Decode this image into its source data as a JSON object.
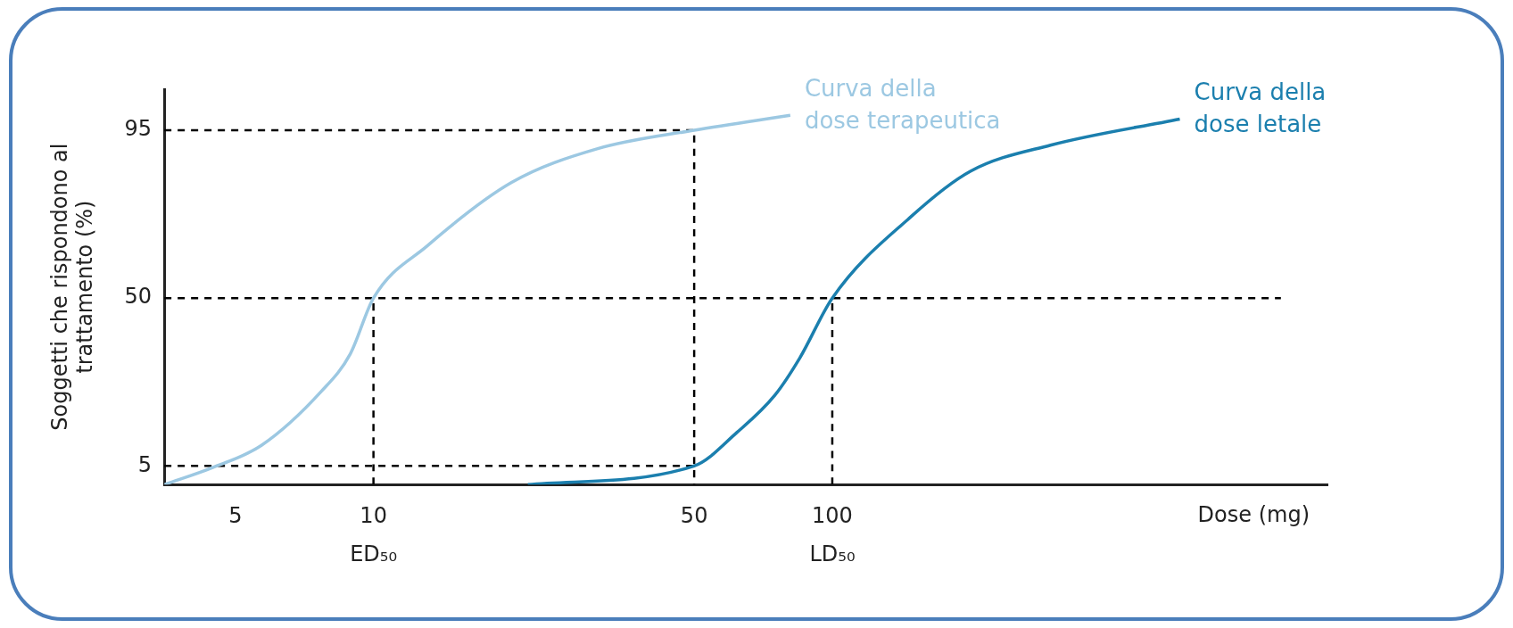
{
  "chart_data": {
    "type": "line",
    "xlabel": "Dose (mg)",
    "ylabel": "Soggetti che rispondono al trattamento (%)",
    "log": "x",
    "xlim": [
      3.5,
      1200
    ],
    "xticks": [
      5,
      10,
      50,
      100
    ],
    "ylim": [
      0,
      106
    ],
    "yticks": [
      5,
      50,
      95
    ],
    "grid": false,
    "legend": false,
    "marker": "none",
    "series": [
      {
        "name": "Curva della dose terapeutica",
        "color": "#9cc8e2",
        "x": [
          3.5,
          4.45,
          5.7,
          7.7,
          8.9,
          10,
          13.1,
          20,
          30.7,
          50,
          81
        ],
        "values": [
          0,
          4.5,
          10.5,
          25,
          35,
          50,
          64,
          81,
          90,
          95,
          99
        ]
      },
      {
        "name": "Curva della dose letale",
        "color": "#1b7fae",
        "x": [
          21.7,
          50,
          62,
          75,
          85,
          100,
          149,
          200,
          299,
          572
        ],
        "values": [
          0,
          5,
          14,
          24,
          34,
          50,
          72,
          84,
          91,
          98
        ]
      },
      {
        "color": "#000000",
        "line_style": "dashed",
        "x": [
          3.5,
          50,
          50
        ],
        "values": [
          95,
          95,
          0
        ]
      },
      {
        "color": "#000000",
        "line_style": "dashed",
        "x": [
          3.5,
          950
        ],
        "values": [
          50,
          50
        ]
      },
      {
        "color": "#000000",
        "line_style": "dashed",
        "x": [
          3.5,
          50
        ],
        "values": [
          5,
          5
        ]
      },
      {
        "color": "#000000",
        "line_style": "dashed",
        "x": [
          10,
          10
        ],
        "values": [
          0,
          50
        ]
      },
      {
        "color": "#000000",
        "line_style": "dashed",
        "x": [
          100,
          100
        ],
        "values": [
          0,
          50
        ]
      }
    ],
    "annotations": [
      {
        "text": "ED₅₀",
        "x": 10,
        "y": 0
      },
      {
        "text": "LD₅₀",
        "x": 100,
        "y": 0
      }
    ]
  }
}
